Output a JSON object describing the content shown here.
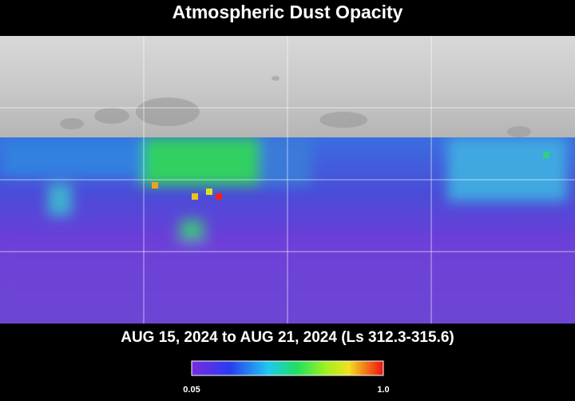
{
  "title": "Atmospheric Dust Opacity",
  "subtitle": "AUG 15, 2024 to AUG 21, 2024 (Ls 312.3-315.6)",
  "colorbar": {
    "min_label": "0.05",
    "max_label": "1.0"
  }
}
